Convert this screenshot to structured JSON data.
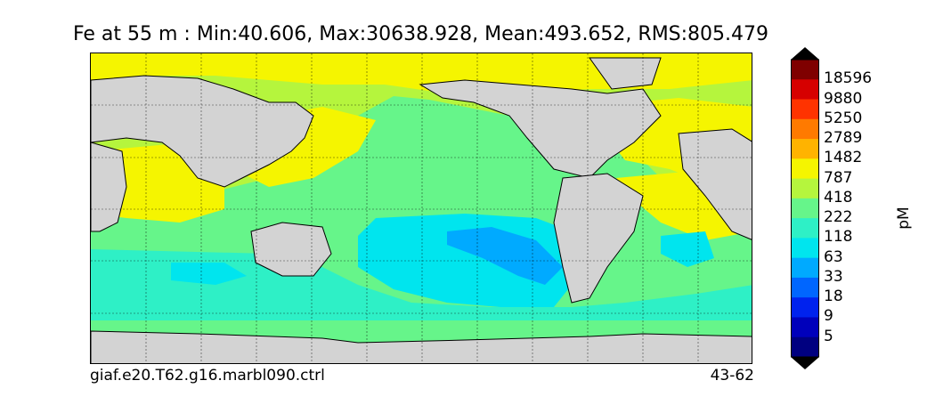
{
  "title": "Fe at 55 m : Min:40.606, Max:30638.928, Mean:493.652, RMS:805.479",
  "run_name": "giaf.e20.T62.g16.marbl090.ctrl",
  "depth_range": "43-62",
  "colorbar": {
    "unit": "pM",
    "labels": [
      "18596",
      "9880",
      "5250",
      "2789",
      "1482",
      "787",
      "418",
      "222",
      "118",
      "63",
      "33",
      "18",
      "9",
      "5"
    ],
    "colors": [
      "#7f0000",
      "#d60000",
      "#ff3300",
      "#ff7a00",
      "#ffb300",
      "#f5f500",
      "#b5f53d",
      "#66f58a",
      "#2ef0c6",
      "#00e5ee",
      "#00aaff",
      "#0066ff",
      "#0022ee",
      "#0000bb",
      "#000080"
    ]
  },
  "map": {
    "land_color": "#d3d3d3",
    "colors": {
      "very_low": "#00aaff",
      "low": "#00e5ee",
      "mid_low": "#2ef0c6",
      "mid": "#66f58a",
      "mid_high": "#b5f53d",
      "high": "#f5f500",
      "very_high": "#ffb300",
      "extreme": "#ff7a00"
    }
  }
}
